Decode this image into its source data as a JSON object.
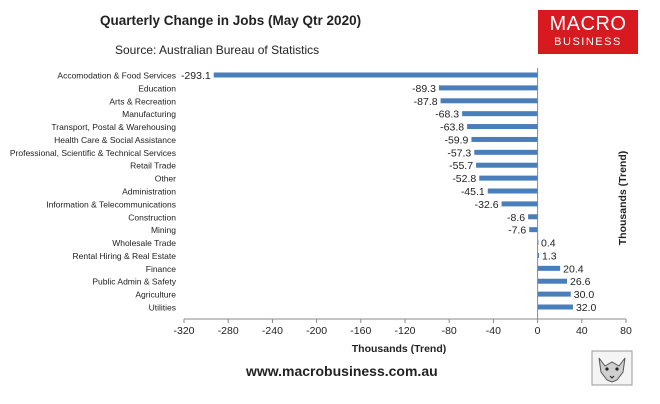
{
  "title": "Quarterly Change in Jobs (May Qtr 2020)",
  "subtitle": "Source: Australian Bureau of Statistics",
  "logo": {
    "line1": "MACRO",
    "line2": "BUSINESS",
    "color": "#d71920"
  },
  "footer": "www.macrobusiness.com.au",
  "chart_data": {
    "type": "bar",
    "orientation": "horizontal",
    "categories": [
      "Accomodation & Food Services",
      "Education",
      "Arts & Recreation",
      "Manufacturing",
      "Transport, Postal & Warehousing",
      "Health Care & Social Assistance",
      "Professional, Scientific & Technical Services",
      "Retail Trade",
      "Other",
      "Administration",
      "Information & Telecommunications",
      "Construction",
      "Mining",
      "Wholesale Trade",
      "Rental Hiring & Real Estate",
      "Finance",
      "Public Admin & Safety",
      "Agriculture",
      "Utilities"
    ],
    "values": [
      -293.1,
      -89.3,
      -87.8,
      -68.3,
      -63.8,
      -59.9,
      -57.3,
      -55.7,
      -52.8,
      -45.1,
      -32.6,
      -8.6,
      -7.6,
      0.4,
      1.3,
      20.4,
      26.6,
      30.0,
      32.0
    ],
    "value_labels": [
      "-293.1",
      "-89.3",
      "-87.8",
      "-68.3",
      "-63.8",
      "-59.9",
      "-57.3",
      "-55.7",
      "-52.8",
      "-45.1",
      "-32.6",
      "-8.6",
      "-7.6",
      "0.4",
      "1.3",
      "20.4",
      "26.6",
      "30.0",
      "32.0"
    ],
    "xlim": [
      -320,
      80
    ],
    "xticks": [
      -320,
      -280,
      -240,
      -200,
      -160,
      -120,
      -80,
      -40,
      0,
      40,
      80
    ],
    "xlabel": "Thousands (Trend)",
    "ylabel": "Thousands (Trend)",
    "bar_color": "#4a7ebb",
    "grid": false,
    "legend": "none"
  }
}
